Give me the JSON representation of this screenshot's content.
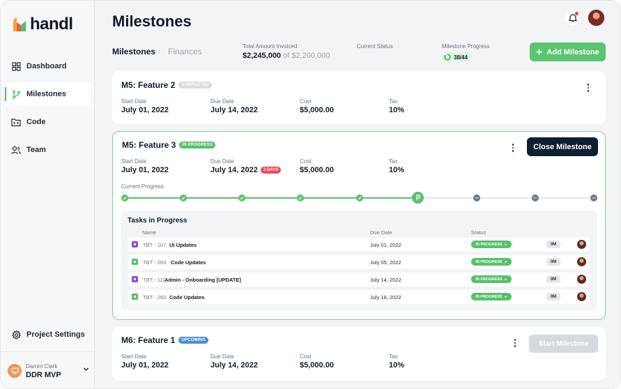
{
  "app": {
    "brand": "handl"
  },
  "sidebar": {
    "items": [
      {
        "label": "Dashboard",
        "icon": "grid-icon",
        "active": false
      },
      {
        "label": "Milestones",
        "icon": "branch-icon",
        "active": true
      },
      {
        "label": "Code",
        "icon": "code-folder-icon",
        "active": false
      },
      {
        "label": "Team",
        "icon": "team-icon",
        "active": false
      }
    ],
    "settings_label": "Project Settings",
    "user": {
      "name": "Darren Clark",
      "project": "DDR MVP"
    }
  },
  "header": {
    "title": "Milestones",
    "tabs": [
      {
        "label": "Milestones",
        "active": true
      },
      {
        "label": "Finances",
        "active": false
      }
    ],
    "stats": {
      "invoiced_label": "Total Amount Invoiced",
      "invoiced_value": "$2,245,000",
      "invoiced_of": "of $2,200,000",
      "status_label": "Current Status",
      "progress_label": "Milestone Progress",
      "progress_value": "38/44",
      "progress_done": 38,
      "progress_total": 44
    },
    "add_button": "Add Milestone"
  },
  "labels": {
    "start_date": "Start Date",
    "due_date": "Due Date",
    "cost": "Cost",
    "tax": "Tax",
    "current_progress": "Current Progress"
  },
  "milestones": [
    {
      "title": "M5: Feature 2",
      "badge": "COMPLETED",
      "start_date": "July 01, 2022",
      "due_date": "July 14, 2022",
      "cost": "$5,000.00",
      "tax": "10%"
    },
    {
      "title": "M5: Feature 3",
      "badge": "IN PROGRESS",
      "start_date": "July 01, 2022",
      "due_date": "July 14, 2022",
      "overdue_badge": "2 DAYS",
      "cost": "$5,000.00",
      "tax": "10%",
      "action": "Close Milestone",
      "progress_steps": {
        "total": 9,
        "done": 5,
        "current": 6
      },
      "tasks": {
        "title": "Tasks in Progress",
        "columns": {
          "name": "Name",
          "due": "Due Date",
          "status": "Status"
        },
        "rows": [
          {
            "id": "TBT - 107",
            "name": "UI Updates",
            "due": "July 01, 2022",
            "status": "IN PROGRESS",
            "time": "0M",
            "type_color": "#8a4fd6"
          },
          {
            "id": "TBT - 283",
            "name": "Code Updates",
            "due": "July 05, 2022",
            "status": "IN PROGRESS",
            "time": "0M",
            "type_color": "#58c06c"
          },
          {
            "id": "TBT - 111",
            "name": "Admin - Onboarding [UPDATE]",
            "due": "July 14, 2022",
            "status": "IN PROGRESS",
            "time": "0M",
            "type_color": "#8a4fd6"
          },
          {
            "id": "TBT - 283",
            "name": "Code Updates",
            "due": "July 18, 2022",
            "status": "IN PROGRESS",
            "time": "0M",
            "type_color": "#58c06c"
          }
        ]
      }
    },
    {
      "title": "M6: Feature 1",
      "badge": "UPCOMING",
      "start_date": "July 01, 2022",
      "due_date": "July 14, 2022",
      "cost": "$5,000.00",
      "tax": "10%",
      "action": "Start Milestone"
    }
  ],
  "colors": {
    "accent": "#5cc46f",
    "dark": "#0e1f2f",
    "overdue": "#ef4a5a",
    "upcoming": "#4b8fd0"
  }
}
